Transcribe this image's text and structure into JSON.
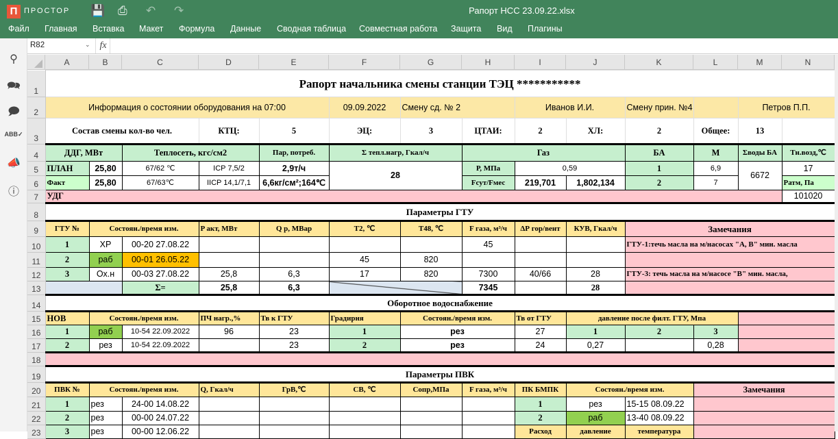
{
  "app": {
    "logo_text": "ПРОСТОР",
    "logo_letter": "П",
    "doc_title": "Рапорт НСС 23.09.22.xlsx"
  },
  "toolbar_icons": [
    "save-icon",
    "print-icon",
    "undo-icon",
    "redo-icon"
  ],
  "menu": [
    "Файл",
    "Главная",
    "Вставка",
    "Макет",
    "Формула",
    "Данные",
    "Сводная таблица",
    "Совместная работа",
    "Защита",
    "Вид",
    "Плагины"
  ],
  "sidebar_icons": [
    "search-icon",
    "comments-icon",
    "chat-icon",
    "spellcheck-icon",
    "feedback-icon",
    "info-icon"
  ],
  "formula_bar": {
    "cell_ref": "R82",
    "fx_label": "fx",
    "formula": ""
  },
  "columns": [
    "A",
    "B",
    "C",
    "D",
    "E",
    "F",
    "G",
    "H",
    "I",
    "J",
    "K",
    "L",
    "M",
    "N"
  ],
  "colors": {
    "accent": "#41845b",
    "green": "#c6efce",
    "light_green": "#ccffcc",
    "yellow": "#ffe699",
    "info_yellow": "#fce8a6",
    "pink": "#ffc7ce",
    "bright_green": "#92d050",
    "orange": "#ffc000",
    "blue_gray": "#dce6f1"
  },
  "sheet": {
    "rows": [
      {
        "num": "1",
        "cells": [
          {
            "t": "Рапорт начальника смены станции ТЭЦ ***********",
            "cs": 14,
            "st": "title"
          }
        ]
      },
      {
        "num": "2",
        "cells": [
          {
            "t": "Информация о состоянии оборудования на 07:00",
            "cs": 5,
            "bg": "info_yellow",
            "st": "s"
          },
          {
            "t": "09.09.2022",
            "bg": "info_yellow",
            "st": "s"
          },
          {
            "t": "Смену сд. №  2",
            "cs": 2,
            "bg": "info_yellow",
            "st": "s left"
          },
          {
            "t": "Иванов И.И.",
            "cs": 2,
            "bg": "info_yellow",
            "st": "s"
          },
          {
            "t": "Смену прин. №4",
            "bg": "info_yellow",
            "st": "s"
          },
          {
            "t": "",
            "bg": "info_yellow"
          },
          {
            "t": "Петров П.П.",
            "cs": 2,
            "bg": "info_yellow",
            "st": "s"
          }
        ]
      },
      {
        "num": "3",
        "cells": [
          {
            "t": "Состав смены кол-во чел.",
            "cs": 3,
            "st": "hs"
          },
          {
            "t": "КТЦ:",
            "st": "hs"
          },
          {
            "t": "5",
            "st": "hs"
          },
          {
            "t": "ЭЦ:",
            "st": "hs"
          },
          {
            "t": "3",
            "st": "hs"
          },
          {
            "t": "ЦТАИ:",
            "st": "hs"
          },
          {
            "t": "2",
            "st": "hs"
          },
          {
            "t": "ХЛ:",
            "st": "hs"
          },
          {
            "t": "2",
            "st": "hs"
          },
          {
            "t": "Общее:",
            "st": "hs"
          },
          {
            "t": "13",
            "st": "hs"
          },
          {
            "t": ""
          }
        ]
      },
      {
        "num": "4",
        "cells": [
          {
            "t": "ДДГ, МВт",
            "cs": 2,
            "bg": "green",
            "st": "hs"
          },
          {
            "t": "Теплосеть, кгс/см2",
            "cs": 2,
            "bg": "green",
            "st": "hs"
          },
          {
            "t": "Пар, потреб.",
            "bg": "green",
            "st": "hsm"
          },
          {
            "t": "Σ тепл.нагр, Гкал/ч",
            "cs": 2,
            "bg": "green",
            "st": "hsm"
          },
          {
            "t": "Газ",
            "cs": 3,
            "bg": "green",
            "st": "hs"
          },
          {
            "t": "БА",
            "bg": "green",
            "st": "hs"
          },
          {
            "t": "М",
            "bg": "green",
            "st": "hs"
          },
          {
            "t": "Σводы БА",
            "bg": "green",
            "st": "hsm"
          },
          {
            "t": "Тн.возд,℃",
            "bg": "green",
            "st": "hsm"
          }
        ]
      },
      {
        "num": "5",
        "cells": [
          {
            "t": "ПЛАН",
            "bg": "green",
            "st": "hs left"
          },
          {
            "t": "25,80",
            "st": "sb"
          },
          {
            "t": "67/62 ℃",
            "st": "ss"
          },
          {
            "t": "ICP 7,5/2",
            "st": "ss"
          },
          {
            "t": "2,9т/ч",
            "st": "sb"
          },
          {
            "t": "28",
            "cs": 2,
            "rs": 2,
            "st": "sb"
          },
          {
            "t": "Р, МПа",
            "bg": "green",
            "st": "hsm"
          },
          {
            "t": "0,59",
            "cs": 2,
            "st": "ss"
          },
          {
            "t": "1",
            "bg": "green",
            "st": "hs"
          },
          {
            "t": "6,9",
            "st": "ss"
          },
          {
            "t": "6672",
            "rs": 2,
            "st": "s"
          },
          {
            "t": "17",
            "st": "s"
          }
        ]
      },
      {
        "num": "6",
        "cells": [
          {
            "t": "Факт",
            "bg": "light_green",
            "st": "hsm left"
          },
          {
            "t": "25,80",
            "st": "sb"
          },
          {
            "t": "67/63℃",
            "st": "ss"
          },
          {
            "t": "IICP 14,1/7,1",
            "st": "ss"
          },
          {
            "t": "6,6кг/см²;164℃",
            "st": "sb"
          },
          {
            "t": "Fсут/Fмес",
            "bg": "green",
            "st": "hsm"
          },
          {
            "t": "219,701",
            "st": "sb"
          },
          {
            "t": "1,802,134",
            "st": "sb"
          },
          {
            "t": "2",
            "bg": "green",
            "st": "hs"
          },
          {
            "t": "7",
            "st": "ss"
          },
          {
            "t": "Ратм, Па",
            "bg": "light_green",
            "st": "hsm left"
          }
        ]
      },
      {
        "num": "7",
        "cells": [
          {
            "t": "УДГ",
            "cs": 13,
            "bg": "pink",
            "st": "hs left"
          },
          {
            "t": "101020",
            "st": "s"
          }
        ]
      },
      {
        "num": "8",
        "cells": [
          {
            "t": "Параметры ГТУ",
            "cs": 14,
            "st": "sect"
          }
        ]
      },
      {
        "num": "9",
        "cells": [
          {
            "t": "ГТУ №",
            "bg": "yellow",
            "st": "hsm"
          },
          {
            "t": "Состоян./время изм.",
            "cs": 2,
            "bg": "yellow",
            "st": "hsm"
          },
          {
            "t": "P акт, МВт",
            "bg": "yellow",
            "st": "hsm left"
          },
          {
            "t": "Q р, МВар",
            "bg": "yellow",
            "st": "hsm"
          },
          {
            "t": "Т2, ℃",
            "bg": "yellow",
            "st": "hsm"
          },
          {
            "t": "Т48, ℃",
            "bg": "yellow",
            "st": "hsm"
          },
          {
            "t": "F газа, м³/ч",
            "bg": "yellow",
            "st": "hsm"
          },
          {
            "t": "ΔР гор/вент",
            "bg": "yellow",
            "st": "hsm"
          },
          {
            "t": "КУВ, Гкал/ч",
            "bg": "yellow",
            "st": "hsm"
          },
          {
            "t": "Замечания",
            "cs": 4,
            "bg": "pink",
            "st": "sect"
          }
        ]
      },
      {
        "num": "10",
        "cells": [
          {
            "t": "1",
            "bg": "green",
            "st": "hs"
          },
          {
            "t": "ХР",
            "st": "s"
          },
          {
            "t": "00-20 27.08.22",
            "st": "s"
          },
          {
            "t": ""
          },
          {
            "t": ""
          },
          {
            "t": ""
          },
          {
            "t": ""
          },
          {
            "t": "45",
            "st": "s"
          },
          {
            "t": ""
          },
          {
            "t": ""
          },
          {
            "t": "ГТУ-1:течь масла на м/насосах \"А, В\" мин. масла",
            "cs": 4,
            "bg": "pink",
            "st": "hsm left"
          }
        ]
      },
      {
        "num": "11",
        "cells": [
          {
            "t": "2",
            "bg": "green",
            "st": "hs"
          },
          {
            "t": "раб",
            "bg": "bright_green",
            "st": "s"
          },
          {
            "t": "00-01 26.05.22",
            "bg": "orange",
            "st": "s"
          },
          {
            "t": ""
          },
          {
            "t": ""
          },
          {
            "t": "45",
            "st": "s"
          },
          {
            "t": "820",
            "st": "s"
          },
          {
            "t": ""
          },
          {
            "t": ""
          },
          {
            "t": ""
          },
          {
            "t": "",
            "cs": 4,
            "bg": "pink"
          }
        ]
      },
      {
        "num": "12",
        "cells": [
          {
            "t": "3",
            "bg": "green",
            "st": "hs"
          },
          {
            "t": "Ох.н",
            "st": "s"
          },
          {
            "t": "00-03 27.08.22",
            "st": "s"
          },
          {
            "t": "25,8",
            "st": "s"
          },
          {
            "t": "6,3",
            "st": "s"
          },
          {
            "t": "17",
            "st": "s"
          },
          {
            "t": "820",
            "st": "s"
          },
          {
            "t": "7300",
            "st": "s"
          },
          {
            "t": "40/66",
            "st": "s"
          },
          {
            "t": "28",
            "st": "s"
          },
          {
            "t": "ГТУ-3: течь масла на м/насосе \"В\" мин. масла,",
            "cs": 4,
            "bg": "pink",
            "st": "hsm left"
          }
        ]
      },
      {
        "num": "13",
        "cells": [
          {
            "t": "",
            "cs": 2,
            "bg": "blue_gray"
          },
          {
            "t": "Σ=",
            "bg": "green",
            "st": "hs"
          },
          {
            "t": "25,8",
            "st": "sb"
          },
          {
            "t": "6,3",
            "st": "sb"
          },
          {
            "t": "",
            "cs": 2,
            "bg": "blue_gray",
            "cross": true
          },
          {
            "t": "7345",
            "st": "sb"
          },
          {
            "t": ""
          },
          {
            "t": "28",
            "st": "hs"
          },
          {
            "t": "",
            "cs": 4,
            "bg": "pink"
          }
        ]
      },
      {
        "num": "14",
        "cells": [
          {
            "t": "Оборотное водоснабжение",
            "cs": 14,
            "st": "sect"
          }
        ]
      },
      {
        "num": "15",
        "cells": [
          {
            "t": "НОВ",
            "bg": "yellow",
            "st": "hs left"
          },
          {
            "t": "Состоян./время изм.",
            "cs": 2,
            "bg": "yellow",
            "st": "hsm"
          },
          {
            "t": "ПЧ нагр.,%",
            "bg": "yellow",
            "st": "hsm left"
          },
          {
            "t": "Тв к ГТУ",
            "bg": "yellow",
            "st": "hsm left"
          },
          {
            "t": "Градирня",
            "bg": "yellow",
            "st": "hsm left"
          },
          {
            "t": "Состоян./время изм.",
            "cs": 2,
            "bg": "yellow",
            "st": "hsm"
          },
          {
            "t": "Тв от ГТУ",
            "bg": "yellow",
            "st": "hsm left"
          },
          {
            "t": "давление после филт. ГТУ, Мпа",
            "cs": 3,
            "bg": "yellow",
            "st": "hsm"
          },
          {
            "t": "",
            "cs": 2,
            "bg": "pink"
          }
        ]
      },
      {
        "num": "16",
        "cells": [
          {
            "t": "1",
            "bg": "green",
            "st": "hs"
          },
          {
            "t": "раб",
            "bg": "bright_green",
            "st": "s"
          },
          {
            "t": "10-54 22.09.2022",
            "st": "ss"
          },
          {
            "t": "96",
            "st": "s"
          },
          {
            "t": "23",
            "st": "s"
          },
          {
            "t": "1",
            "bg": "green",
            "st": "hs"
          },
          {
            "t": "рез",
            "cs": 2,
            "st": "sb"
          },
          {
            "t": "27",
            "st": "s"
          },
          {
            "t": "1",
            "bg": "green",
            "st": "hs"
          },
          {
            "t": "2",
            "bg": "green",
            "st": "hs"
          },
          {
            "t": "3",
            "bg": "green",
            "st": "hs"
          },
          {
            "t": "",
            "cs": 2,
            "bg": "pink"
          }
        ]
      },
      {
        "num": "17",
        "cells": [
          {
            "t": "2",
            "bg": "green",
            "st": "hs"
          },
          {
            "t": "рез",
            "st": "s"
          },
          {
            "t": "10-54 22.09.2022",
            "st": "ss"
          },
          {
            "t": ""
          },
          {
            "t": "23",
            "st": "s"
          },
          {
            "t": "2",
            "bg": "green",
            "st": "hs"
          },
          {
            "t": "рез",
            "cs": 2,
            "st": "sb"
          },
          {
            "t": "24",
            "st": "s"
          },
          {
            "t": "0,27",
            "st": "s"
          },
          {
            "t": ""
          },
          {
            "t": "0,28",
            "st": "s"
          },
          {
            "t": "",
            "cs": 2,
            "bg": "pink"
          }
        ]
      },
      {
        "num": "18",
        "cells": [
          {
            "t": "",
            "cs": 14,
            "bg": "pink"
          }
        ]
      },
      {
        "num": "19",
        "cells": [
          {
            "t": "Параметры ПВК",
            "cs": 14,
            "st": "sect"
          }
        ]
      },
      {
        "num": "20",
        "cells": [
          {
            "t": "ПВК №",
            "bg": "yellow",
            "st": "hsm"
          },
          {
            "t": "Состоян./время изм.",
            "cs": 2,
            "bg": "yellow",
            "st": "hsm"
          },
          {
            "t": "Q, Гкал/ч",
            "bg": "yellow",
            "st": "hsm left"
          },
          {
            "t": "ГрВ,℃",
            "bg": "yellow",
            "st": "hsm"
          },
          {
            "t": "СВ, ℃",
            "bg": "yellow",
            "st": "hsm"
          },
          {
            "t": "Сопр,МПа",
            "bg": "yellow",
            "st": "hsm"
          },
          {
            "t": "F газа, м³/ч",
            "bg": "yellow",
            "st": "hsm"
          },
          {
            "t": "ПК БМПК",
            "bg": "yellow",
            "st": "hsm"
          },
          {
            "t": "Состоян./время изм.",
            "cs": 2,
            "bg": "yellow",
            "st": "hsm"
          },
          {
            "t": "Замечания",
            "cs": 3,
            "bg": "pink",
            "st": "hs"
          }
        ]
      },
      {
        "num": "21",
        "cells": [
          {
            "t": "1",
            "bg": "green",
            "st": "hs"
          },
          {
            "t": "рез",
            "st": "s left"
          },
          {
            "t": "24-00 14.08.22",
            "st": "s"
          },
          {
            "t": ""
          },
          {
            "t": ""
          },
          {
            "t": ""
          },
          {
            "t": ""
          },
          {
            "t": ""
          },
          {
            "t": "1",
            "bg": "green",
            "st": "hs"
          },
          {
            "t": "рез",
            "st": "s"
          },
          {
            "t": "15-15 08.09.22",
            "st": "s left"
          },
          {
            "t": "",
            "cs": 3,
            "bg": "pink"
          }
        ]
      },
      {
        "num": "22",
        "cells": [
          {
            "t": "2",
            "bg": "green",
            "st": "hs"
          },
          {
            "t": "рез",
            "st": "s left"
          },
          {
            "t": "00-00 24.07.22",
            "st": "s"
          },
          {
            "t": ""
          },
          {
            "t": ""
          },
          {
            "t": ""
          },
          {
            "t": ""
          },
          {
            "t": ""
          },
          {
            "t": "2",
            "bg": "green",
            "st": "hs"
          },
          {
            "t": "раб",
            "bg": "bright_green",
            "st": "s"
          },
          {
            "t": "13-40 08.09.22",
            "st": "s left"
          },
          {
            "t": "",
            "cs": 3,
            "bg": "pink"
          }
        ]
      },
      {
        "num": "23",
        "cells": [
          {
            "t": "3",
            "bg": "green",
            "st": "hs"
          },
          {
            "t": "рез",
            "st": "s left"
          },
          {
            "t": "00-00 12.06.22",
            "st": "s"
          },
          {
            "t": ""
          },
          {
            "t": ""
          },
          {
            "t": ""
          },
          {
            "t": ""
          },
          {
            "t": ""
          },
          {
            "t": "Расход",
            "bg": "yellow",
            "st": "hsm"
          },
          {
            "t": "давление",
            "bg": "yellow",
            "st": "hsm"
          },
          {
            "t": "температура",
            "bg": "yellow",
            "st": "hsm"
          },
          {
            "t": "",
            "cs": 3,
            "bg": "pink"
          }
        ]
      }
    ]
  }
}
